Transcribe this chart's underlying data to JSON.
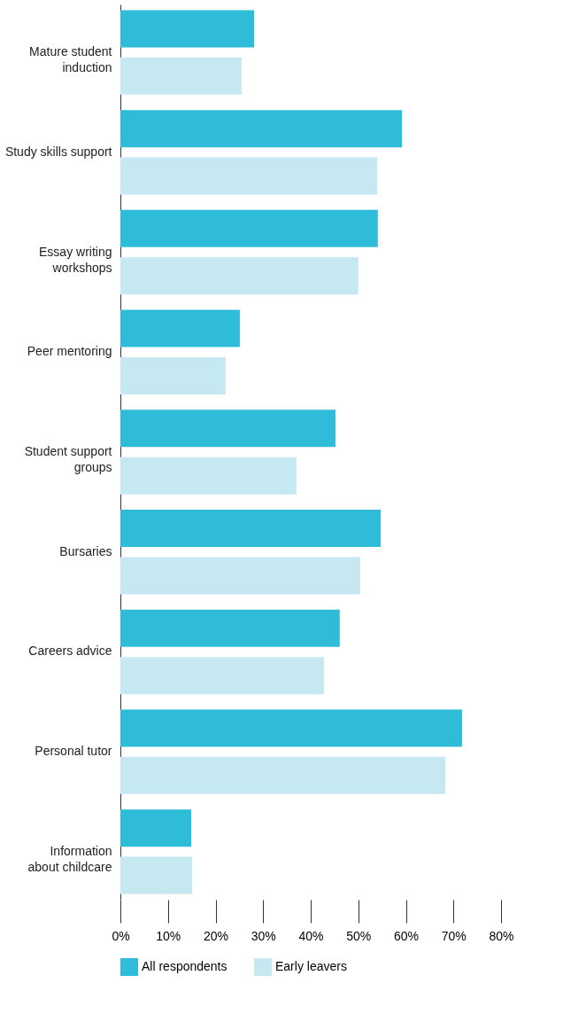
{
  "chart_data": {
    "type": "bar",
    "orientation": "horizontal",
    "categories": [
      "Mature student\ninduction",
      "Study skills support",
      "Essay writing\nworkshops",
      "Peer mentoring",
      "Student support\ngroups",
      "Bursaries",
      "Careers advice",
      "Personal tutor",
      "Information\nabout childcare"
    ],
    "series": [
      {
        "name": "All respondents",
        "color": "#2ebcd8",
        "values": [
          28.1,
          59.2,
          54.1,
          25.1,
          45.2,
          54.7,
          46.1,
          71.8,
          14.9
        ]
      },
      {
        "name": "Early leavers",
        "color": "#c5e8f1",
        "values": [
          25.5,
          54.0,
          50.0,
          22.1,
          37.0,
          50.4,
          42.8,
          68.3,
          15.1
        ]
      }
    ],
    "xlim": [
      0,
      80
    ],
    "xticks": [
      {
        "value": 0,
        "label": "0%"
      },
      {
        "value": 10,
        "label": "10%"
      },
      {
        "value": 20,
        "label": "20%"
      },
      {
        "value": 30,
        "label": "30%"
      },
      {
        "value": 40,
        "label": "40%"
      },
      {
        "value": 50,
        "label": "50%"
      },
      {
        "value": 60,
        "label": "60%"
      },
      {
        "value": 70,
        "label": "70%"
      },
      {
        "value": 80,
        "label": "80%"
      }
    ],
    "grid": false,
    "legend": "bottom"
  }
}
